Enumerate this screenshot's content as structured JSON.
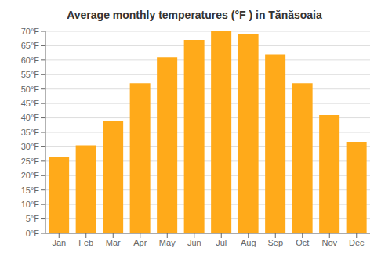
{
  "chart_data": {
    "type": "bar",
    "title": "Average monthly temperatures (°F ) in Tănăsoaia",
    "categories": [
      "Jan",
      "Feb",
      "Mar",
      "Apr",
      "May",
      "Jun",
      "Jul",
      "Aug",
      "Sep",
      "Oct",
      "Nov",
      "Dec"
    ],
    "values": [
      26.5,
      30.5,
      39.0,
      52.0,
      61.0,
      67.0,
      70.0,
      69.0,
      62.0,
      52.0,
      41.0,
      31.5
    ],
    "color": "#FFAA1A",
    "ylim": [
      0,
      70
    ],
    "yticks": [
      {
        "value": 0,
        "label": "0°F"
      },
      {
        "value": 5,
        "label": "5°F"
      },
      {
        "value": 10,
        "label": "10°F"
      },
      {
        "value": 15,
        "label": "15°F"
      },
      {
        "value": 20,
        "label": "20°F"
      },
      {
        "value": 25,
        "label": "25°F"
      },
      {
        "value": 30,
        "label": "30°F"
      },
      {
        "value": 35,
        "label": "35°F"
      },
      {
        "value": 40,
        "label": "40°F"
      },
      {
        "value": 45,
        "label": "45°F"
      },
      {
        "value": 50,
        "label": "50°F"
      },
      {
        "value": 55,
        "label": "55°F"
      },
      {
        "value": 60,
        "label": "60°F"
      },
      {
        "value": 65,
        "label": "65°F"
      },
      {
        "value": 70,
        "label": "70°F"
      }
    ],
    "grid": true
  }
}
